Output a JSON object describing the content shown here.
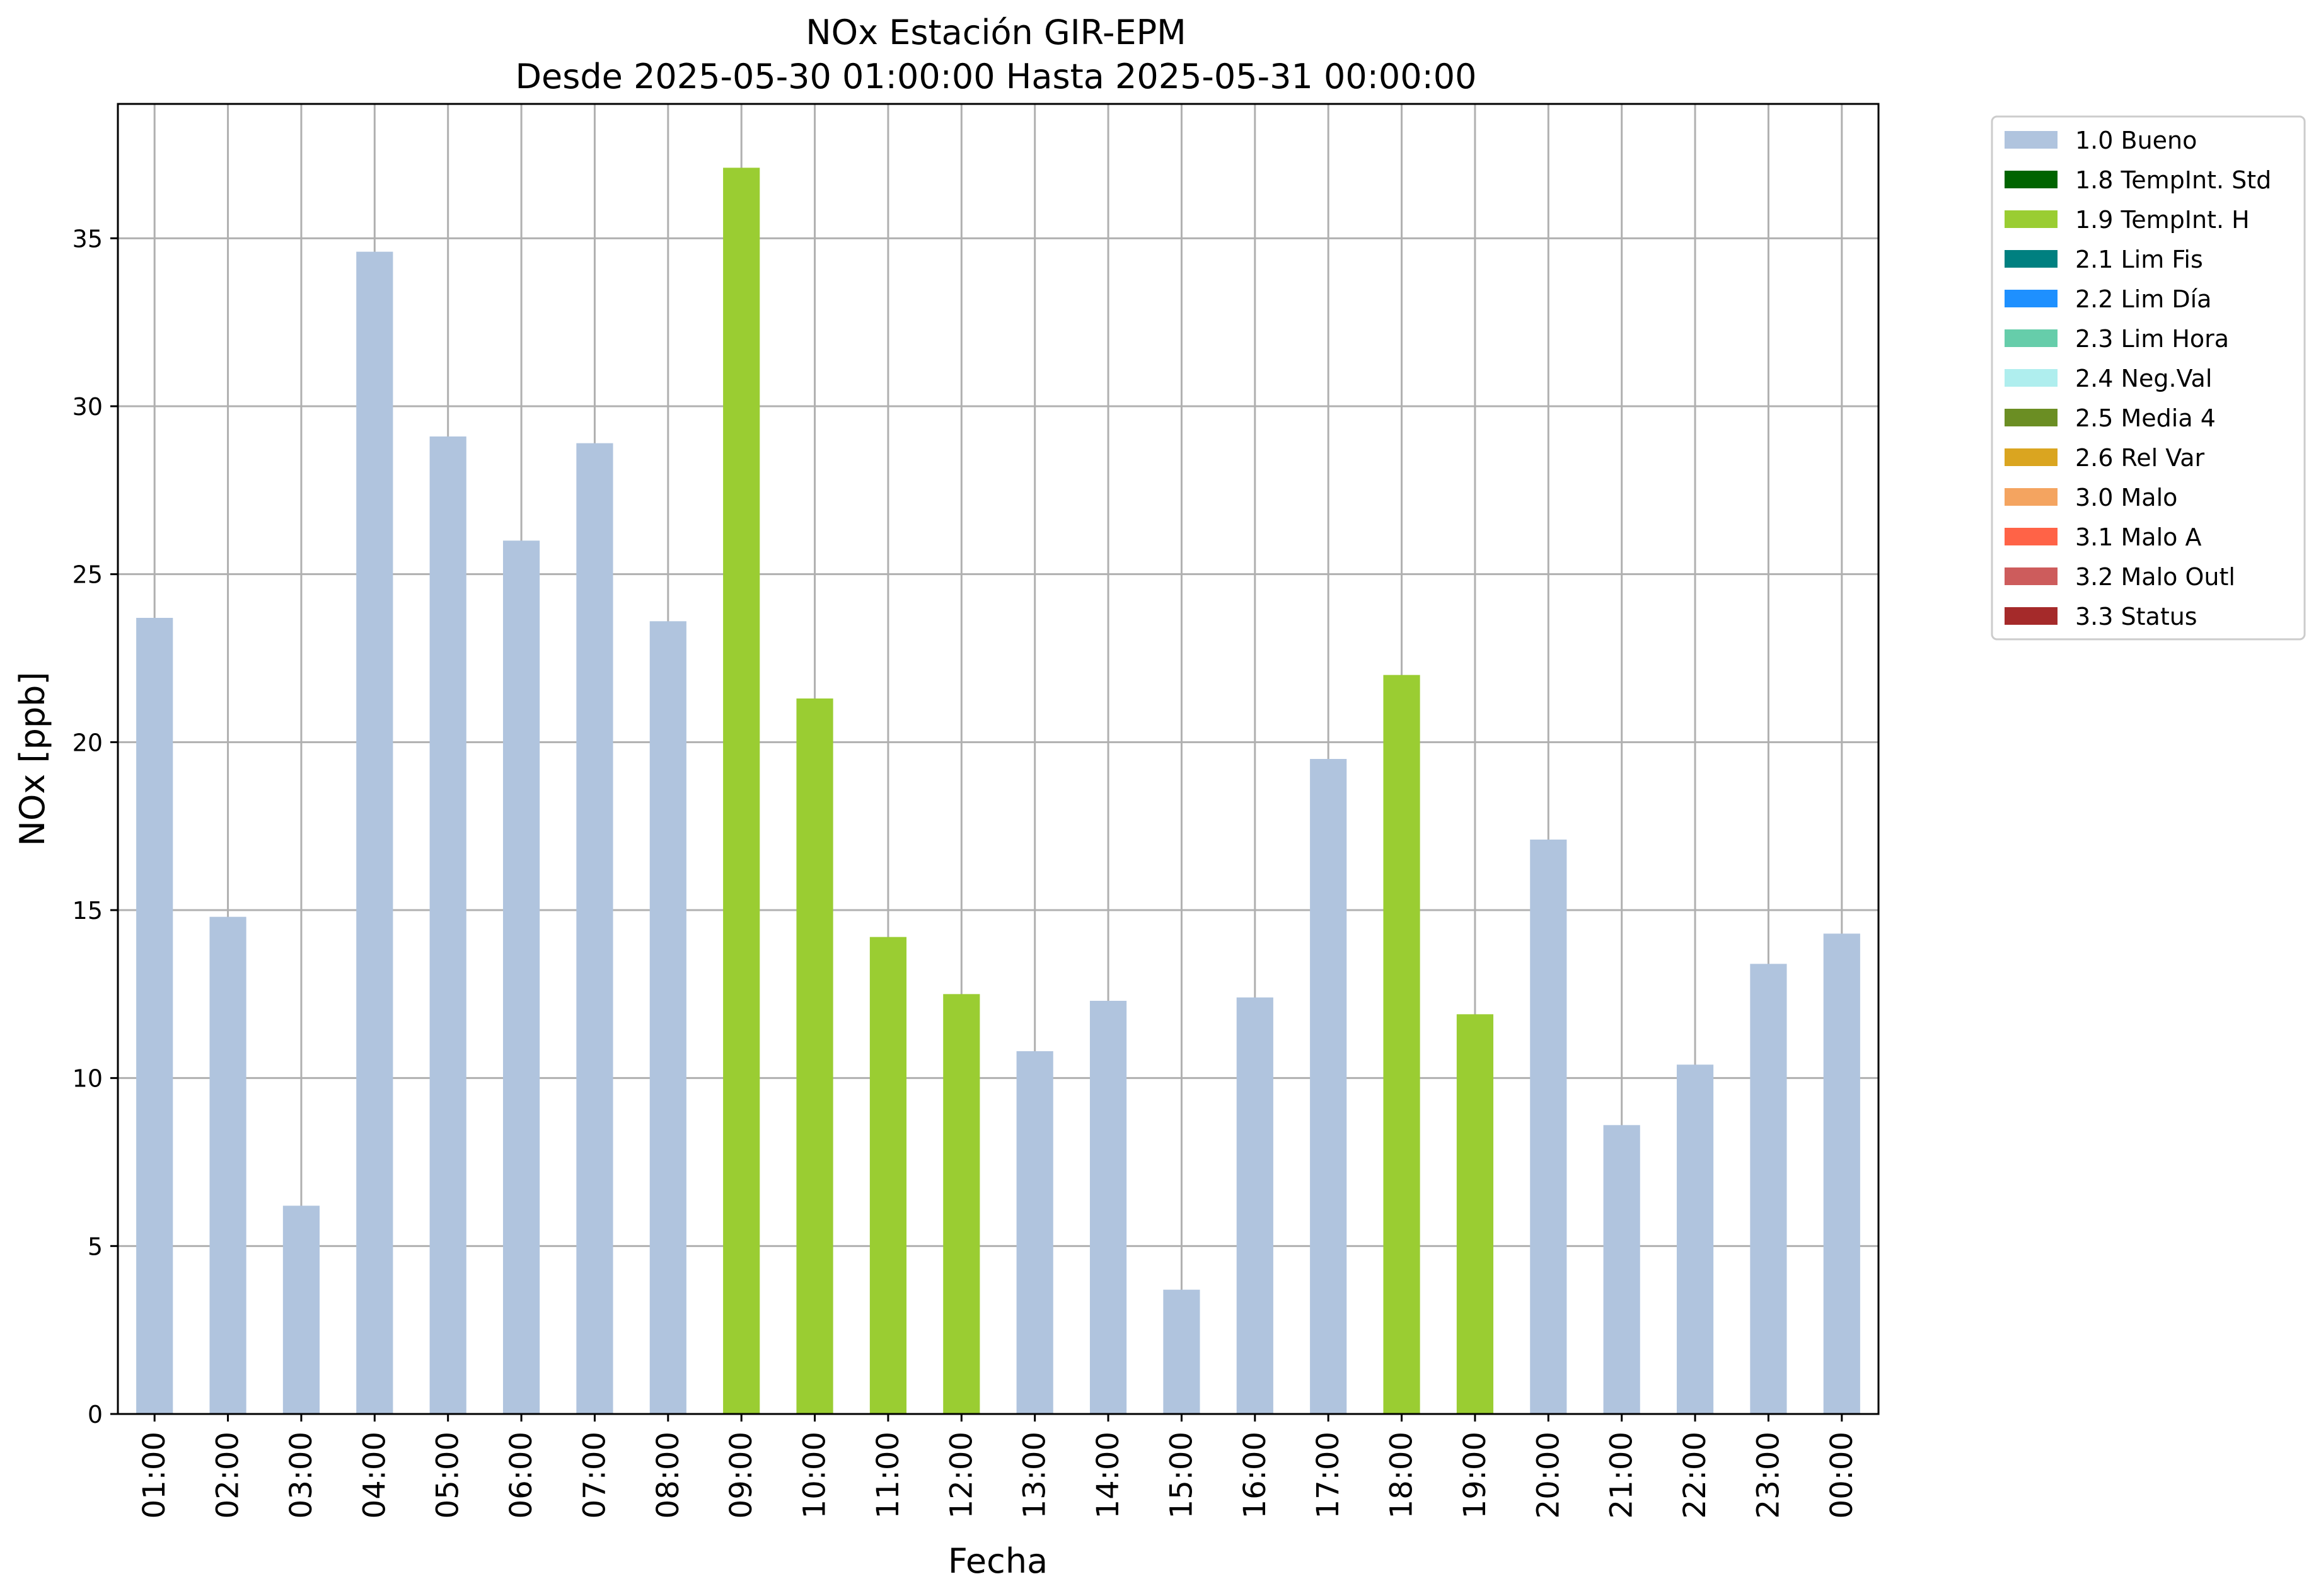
{
  "chart_data": {
    "type": "bar",
    "title": "NOx Estación GIR-EPM",
    "subtitle": "Desde 2025-05-30 01:00:00 Hasta 2025-05-31 00:00:00",
    "xlabel": "Fecha",
    "ylabel": "NOx [ppb]",
    "ylim": [
      0,
      39
    ],
    "yticks": [
      0,
      5,
      10,
      15,
      20,
      25,
      30,
      35
    ],
    "grid": true,
    "legend_position": "outside-top-right",
    "categories": [
      "01:00",
      "02:00",
      "03:00",
      "04:00",
      "05:00",
      "06:00",
      "07:00",
      "08:00",
      "09:00",
      "10:00",
      "11:00",
      "12:00",
      "13:00",
      "14:00",
      "15:00",
      "16:00",
      "17:00",
      "18:00",
      "19:00",
      "20:00",
      "21:00",
      "22:00",
      "23:00",
      "00:00"
    ],
    "values": [
      23.7,
      14.8,
      6.2,
      34.6,
      29.1,
      26.0,
      28.9,
      23.6,
      37.1,
      21.3,
      14.2,
      12.5,
      10.8,
      12.3,
      3.7,
      12.4,
      19.5,
      22.0,
      11.9,
      17.1,
      8.6,
      10.4,
      13.4,
      14.3
    ],
    "flags": [
      "1.0",
      "1.0",
      "1.0",
      "1.0",
      "1.0",
      "1.0",
      "1.0",
      "1.0",
      "1.9",
      "1.9",
      "1.9",
      "1.9",
      "1.0",
      "1.0",
      "1.0",
      "1.0",
      "1.0",
      "1.9",
      "1.9",
      "1.0",
      "1.0",
      "1.0",
      "1.0",
      "1.0"
    ],
    "legend": [
      {
        "code": "1.0",
        "label": "1.0 Bueno",
        "color": "#b0c4de"
      },
      {
        "code": "1.8",
        "label": "1.8 TempInt. Std",
        "color": "#006400"
      },
      {
        "code": "1.9",
        "label": "1.9 TempInt. H",
        "color": "#9acd32"
      },
      {
        "code": "2.1",
        "label": "2.1 Lim Fis",
        "color": "#008080"
      },
      {
        "code": "2.2",
        "label": "2.2 Lim Día",
        "color": "#1e90ff"
      },
      {
        "code": "2.3",
        "label": "2.3 Lim Hora",
        "color": "#66cdaa"
      },
      {
        "code": "2.4",
        "label": "2.4 Neg.Val",
        "color": "#afeeee"
      },
      {
        "code": "2.5",
        "label": "2.5 Media 4",
        "color": "#6b8e23"
      },
      {
        "code": "2.6",
        "label": "2.6 Rel Var",
        "color": "#daa520"
      },
      {
        "code": "3.0",
        "label": "3.0 Malo",
        "color": "#f4a460"
      },
      {
        "code": "3.1",
        "label": "3.1 Malo A",
        "color": "#ff6347"
      },
      {
        "code": "3.2",
        "label": "3.2 Malo Outl",
        "color": "#cd5c5c"
      },
      {
        "code": "3.3",
        "label": "3.3 Status",
        "color": "#a52a2a"
      }
    ]
  }
}
